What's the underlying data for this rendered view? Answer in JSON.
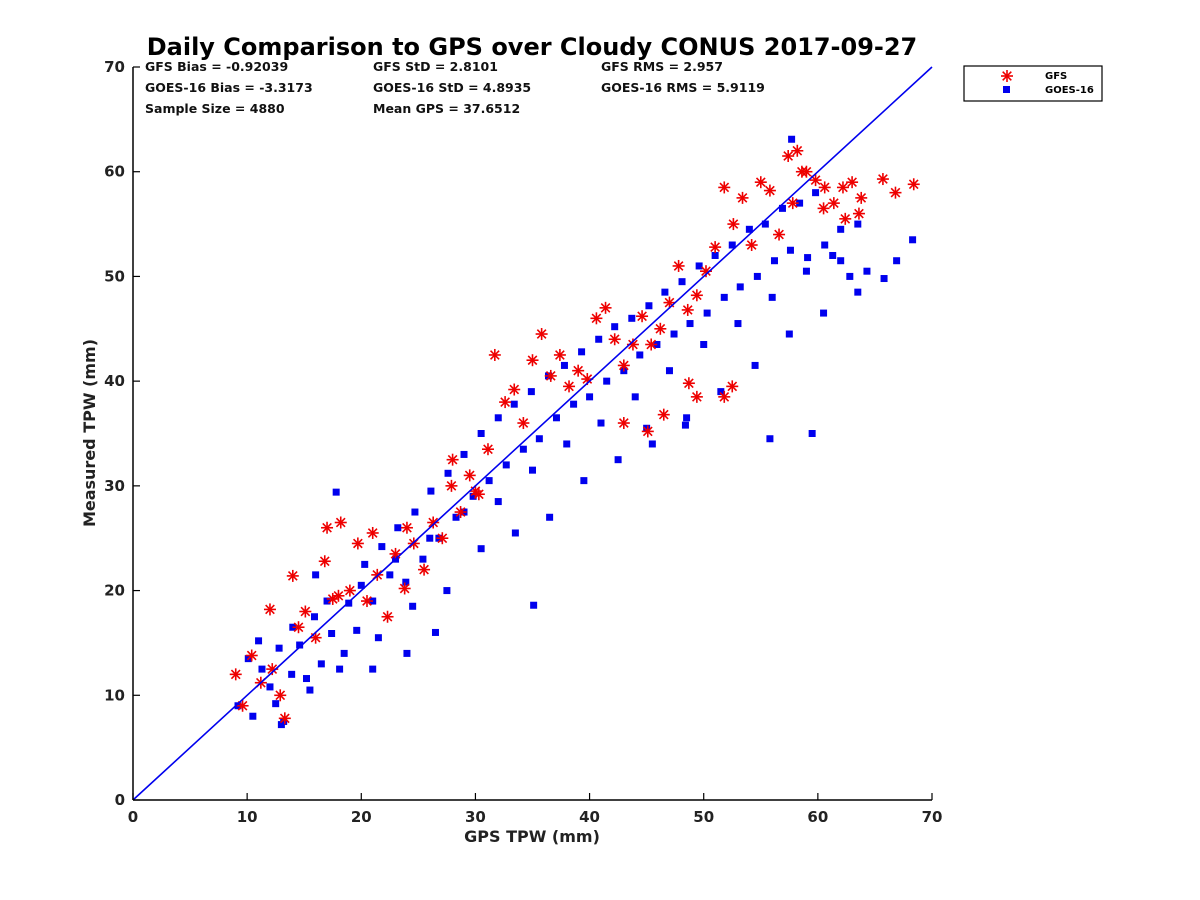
{
  "chart_data": {
    "type": "scatter",
    "title": "Daily Comparison to GPS over Cloudy CONUS 2017-09-27",
    "xlabel": "GPS TPW (mm)",
    "ylabel": "Measured TPW (mm)",
    "xlim": [
      0,
      70
    ],
    "ylim": [
      0,
      70
    ],
    "xticks": [
      "0",
      "10",
      "20",
      "30",
      "40",
      "50",
      "60",
      "70"
    ],
    "yticks": [
      "0",
      "10",
      "20",
      "30",
      "40",
      "50",
      "60",
      "70"
    ],
    "grid": false,
    "legend_position": "outside-top-right",
    "reference_line": {
      "x": [
        0,
        70
      ],
      "y": [
        0,
        70
      ],
      "color": "#0000ee"
    },
    "stats": [
      [
        "GFS Bias = -0.92039",
        "GFS StD = 2.8101",
        "GFS RMS = 2.957"
      ],
      [
        "GOES-16 Bias = -3.3173",
        "GOES-16 StD = 4.8935",
        "GOES-16 RMS = 5.9119"
      ],
      [
        "Sample Size = 4880",
        "Mean GPS = 37.6512",
        ""
      ]
    ],
    "series": [
      {
        "name": "GOES-16",
        "marker": "square",
        "color": "#0000ee",
        "x": [
          9.2,
          10.1,
          10.5,
          11.3,
          12.0,
          12.8,
          13.2,
          13.9,
          14.6,
          15.2,
          15.9,
          16.5,
          17.4,
          18.1,
          18.9,
          19.6,
          20.3,
          21.0,
          21.8,
          22.5,
          23.2,
          23.9,
          24.7,
          25.4,
          26.1,
          26.8,
          27.6,
          28.3,
          29.0,
          29.8,
          30.5,
          31.2,
          32.0,
          32.7,
          33.4,
          34.2,
          34.9,
          35.6,
          36.4,
          37.1,
          37.8,
          38.6,
          39.3,
          40.0,
          40.8,
          41.5,
          42.2,
          43.0,
          43.7,
          44.4,
          45.2,
          45.9,
          46.6,
          47.4,
          48.1,
          48.8,
          49.6,
          50.3,
          51.0,
          51.8,
          52.5,
          53.2,
          54.0,
          54.7,
          55.4,
          56.2,
          56.9,
          57.6,
          58.4,
          59.1,
          59.8,
          60.6,
          61.3,
          62.0,
          62.8,
          63.5,
          64.3,
          65.8,
          66.9,
          68.3,
          11.0,
          12.5,
          14.0,
          15.5,
          17.0,
          18.5,
          20.0,
          21.5,
          23.0,
          24.5,
          26.0,
          27.5,
          29.0,
          30.5,
          32.0,
          33.5,
          35.0,
          36.5,
          38.0,
          39.5,
          41.0,
          42.5,
          44.0,
          45.5,
          47.0,
          48.5,
          50.0,
          51.5,
          53.0,
          54.5,
          56.0,
          57.5,
          59.0,
          60.5,
          62.0,
          63.5,
          35.1,
          45.0,
          48.4,
          55.8,
          59.5,
          57.7,
          13.0,
          17.8,
          16.0,
          21.0,
          24.0,
          26.5
        ],
        "y": [
          9.0,
          13.5,
          8.0,
          12.5,
          10.8,
          14.5,
          7.5,
          12.0,
          14.8,
          11.6,
          17.5,
          13.0,
          15.9,
          12.5,
          18.8,
          16.2,
          22.5,
          19.0,
          24.2,
          21.5,
          26.0,
          20.8,
          27.5,
          23.0,
          29.5,
          25.0,
          31.2,
          27.0,
          33.0,
          29.0,
          35.0,
          30.5,
          36.5,
          32.0,
          37.8,
          33.5,
          39.0,
          34.5,
          40.5,
          36.5,
          41.5,
          37.8,
          42.8,
          38.5,
          44.0,
          40.0,
          45.2,
          41.0,
          46.0,
          42.5,
          47.2,
          43.5,
          48.5,
          44.5,
          49.5,
          45.5,
          51.0,
          46.5,
          52.0,
          48.0,
          53.0,
          49.0,
          54.5,
          50.0,
          55.0,
          51.5,
          56.5,
          52.5,
          57.0,
          51.8,
          58.0,
          53.0,
          52.0,
          54.5,
          50.0,
          55.0,
          50.5,
          49.8,
          51.5,
          53.5,
          15.2,
          9.2,
          16.5,
          10.5,
          19.0,
          14.0,
          20.5,
          15.5,
          23.0,
          18.5,
          25.0,
          20.0,
          27.5,
          24.0,
          28.5,
          25.5,
          31.5,
          27.0,
          34.0,
          30.5,
          36.0,
          32.5,
          38.5,
          34.0,
          41.0,
          36.5,
          43.5,
          39.0,
          45.5,
          41.5,
          48.0,
          44.5,
          50.5,
          46.5,
          51.5,
          48.5,
          18.6,
          35.5,
          35.8,
          34.5,
          35.0,
          63.1,
          7.2,
          29.4,
          21.5,
          12.5,
          14.0,
          16.0
        ]
      },
      {
        "name": "GFS",
        "marker": "asterisk",
        "color": "#ee0000",
        "x": [
          9.0,
          9.6,
          10.4,
          11.2,
          12.2,
          12.9,
          13.3,
          14.0,
          15.1,
          16.0,
          16.8,
          17.5,
          18.2,
          19.0,
          19.7,
          20.5,
          21.4,
          22.3,
          23.0,
          23.8,
          24.6,
          25.5,
          26.3,
          27.1,
          27.9,
          28.7,
          29.5,
          30.3,
          31.1,
          31.7,
          32.6,
          33.4,
          34.2,
          35.0,
          35.8,
          36.6,
          37.4,
          38.2,
          39.0,
          39.8,
          40.6,
          41.4,
          42.2,
          43.0,
          43.8,
          44.6,
          45.4,
          46.2,
          47.0,
          47.8,
          48.6,
          49.4,
          50.2,
          51.0,
          51.8,
          52.6,
          53.4,
          54.2,
          55.0,
          55.8,
          56.6,
          57.4,
          58.2,
          59.0,
          59.8,
          60.6,
          61.4,
          62.2,
          63.0,
          63.6,
          65.7,
          66.8,
          68.4,
          57.8,
          58.6,
          60.5,
          62.4,
          63.8,
          45.1,
          46.5,
          48.7,
          49.4,
          52.5,
          43.0,
          51.8,
          30.0,
          28.0,
          24.0,
          21.0,
          18.0,
          17.0,
          14.5,
          12.0
        ],
        "y": [
          12.0,
          9.0,
          13.8,
          11.2,
          12.5,
          10.0,
          7.8,
          21.4,
          18.0,
          15.5,
          22.8,
          19.2,
          26.5,
          20.0,
          24.5,
          19.0,
          21.5,
          17.5,
          23.5,
          20.2,
          24.5,
          22.0,
          26.5,
          25.0,
          30.0,
          27.5,
          31.0,
          29.2,
          33.5,
          42.5,
          38.0,
          39.2,
          36.0,
          42.0,
          44.5,
          40.5,
          42.5,
          39.5,
          41.0,
          40.2,
          46.0,
          47.0,
          44.0,
          41.5,
          43.5,
          46.2,
          43.5,
          45.0,
          47.5,
          51.0,
          46.8,
          48.2,
          50.5,
          52.8,
          58.5,
          55.0,
          57.5,
          53.0,
          59.0,
          58.2,
          54.0,
          61.5,
          62.0,
          60.0,
          59.2,
          58.5,
          57.0,
          58.5,
          59.0,
          56.0,
          59.3,
          58.0,
          58.8,
          57.0,
          60.0,
          56.5,
          55.5,
          57.5,
          35.2,
          36.8,
          39.8,
          38.5,
          39.5,
          36.0,
          38.5,
          29.5,
          32.5,
          26.0,
          25.5,
          19.5,
          26.0,
          16.5,
          18.2
        ]
      }
    ]
  }
}
